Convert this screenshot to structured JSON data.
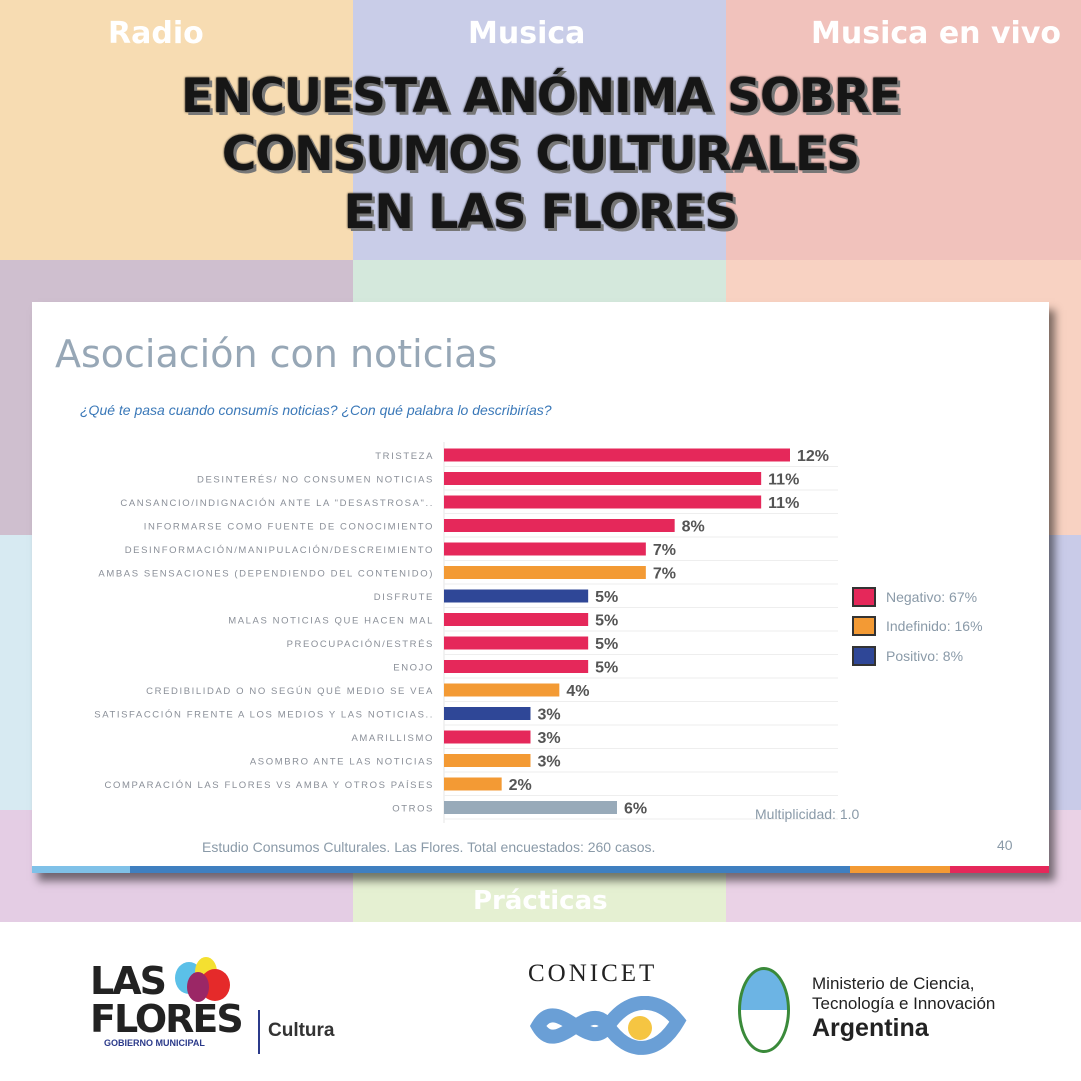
{
  "background": {
    "tiles": [
      "Radio",
      "Musica",
      "Musica en vivo",
      "Prácticas"
    ]
  },
  "title": [
    "ENCUESTA ANÓNIMA SOBRE",
    "CONSUMOS CULTURALES",
    "EN LAS FLORES"
  ],
  "chart_data": {
    "type": "bar",
    "orientation": "horizontal",
    "title": "Asociación con noticias",
    "subtitle": "¿Qué te pasa cuando consumís noticias? ¿Con qué palabra lo describirías?",
    "categories": [
      "TRISTEZA",
      "DESINTERÉS/ NO CONSUMEN NOTICIAS",
      "CANSANCIO/INDIGNACIÓN ANTE LA \"DESASTROSA\"..",
      "INFORMARSE COMO FUENTE DE CONOCIMIENTO",
      "DESINFORMACIÓN/MANIPULACIÓN/DESCREIMIENTO",
      "AMBAS SENSACIONES (DEPENDIENDO DEL CONTENIDO)",
      "DISFRUTE",
      "MALAS NOTICIAS QUE HACEN MAL",
      "PREOCUPACIÓN/ESTRÉS",
      "ENOJO",
      "CREDIBILIDAD O NO SEGÚN QUÉ MEDIO SE VEA",
      "SATISFACCIÓN FRENTE A LOS MEDIOS Y LAS NOTICIAS..",
      "AMARILLISMO",
      "ASOMBRO ANTE LAS NOTICIAS",
      "COMPARACIÓN LAS FLORES VS AMBA Y OTROS PAÍSES",
      "OTROS"
    ],
    "values": [
      12,
      11,
      11,
      8,
      7,
      7,
      5,
      5,
      5,
      5,
      4,
      3,
      3,
      3,
      2,
      6
    ],
    "labels": [
      "12%",
      "11%",
      "11%",
      "8%",
      "7%",
      "7%",
      "5%",
      "5%",
      "5%",
      "5%",
      "4%",
      "3%",
      "3%",
      "3%",
      "2%",
      "6%"
    ],
    "groups": [
      "neg",
      "neg",
      "neg",
      "neg",
      "neg",
      "ind",
      "pos",
      "neg",
      "neg",
      "neg",
      "ind",
      "pos",
      "neg",
      "ind",
      "ind",
      "otros"
    ],
    "colors": {
      "neg": "#e5285a",
      "ind": "#f39a34",
      "pos": "#2f4797",
      "otros": "#98aab9"
    },
    "xlim": [
      0,
      12
    ],
    "legend": {
      "position": "right",
      "entries": [
        {
          "label": "Negativo: 67%",
          "group": "neg"
        },
        {
          "label": "Indefinido: 16%",
          "group": "ind"
        },
        {
          "label": "Positivo: 8%",
          "group": "pos"
        }
      ]
    },
    "annotation": "Multiplicidad: 1.0"
  },
  "footnote": "Estudio Consumos Culturales. Las Flores. Total encuestados: 260 casos.",
  "page_number": "40",
  "footer": {
    "lasflores": [
      "LAS",
      "FLORES"
    ],
    "gobierno": "GOBIERNO MUNICIPAL",
    "cultura": "Cultura",
    "conicet": "CONICET",
    "ministerio": [
      "Ministerio de Ciencia,",
      "Tecnología e Innovación",
      "Argentina"
    ]
  }
}
